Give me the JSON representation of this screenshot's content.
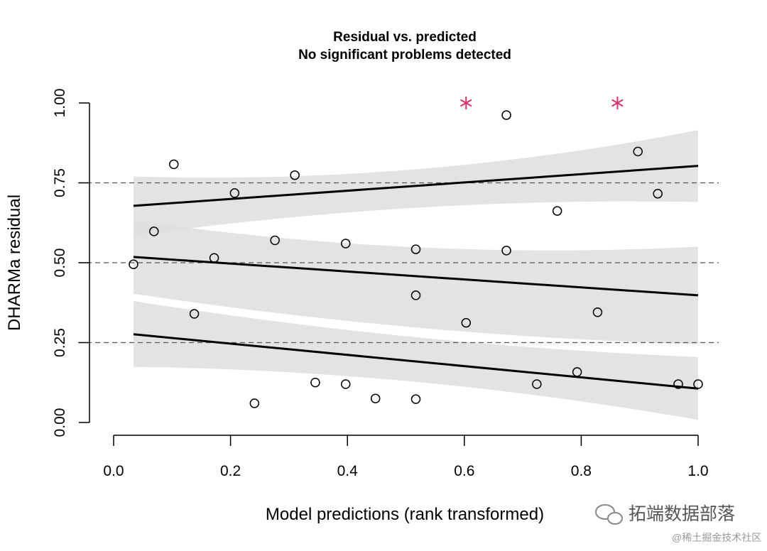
{
  "chart_data": {
    "type": "scatter",
    "title": "Residual vs. predicted",
    "subtitle": "No significant problems detected",
    "xlabel": "Model predictions (rank transformed)",
    "ylabel": "DHARMa residual",
    "xlim": [
      0.0,
      1.0
    ],
    "ylim": [
      0.0,
      1.0
    ],
    "x_ticks": [
      {
        "value": 0.0,
        "label": "0.0"
      },
      {
        "value": 0.2,
        "label": "0.2"
      },
      {
        "value": 0.4,
        "label": "0.4"
      },
      {
        "value": 0.6,
        "label": "0.6"
      },
      {
        "value": 0.8,
        "label": "0.8"
      },
      {
        "value": 1.0,
        "label": "1.0"
      }
    ],
    "y_ticks": [
      {
        "value": 0.0,
        "label": "0.00"
      },
      {
        "value": 0.25,
        "label": "0.25"
      },
      {
        "value": 0.5,
        "label": "0.50"
      },
      {
        "value": 0.75,
        "label": "0.75"
      },
      {
        "value": 1.0,
        "label": "1.00"
      }
    ],
    "reference_lines": [
      0.25,
      0.5,
      0.75
    ],
    "points": [
      {
        "x": 0.034,
        "y": 0.495
      },
      {
        "x": 0.069,
        "y": 0.598
      },
      {
        "x": 0.103,
        "y": 0.808
      },
      {
        "x": 0.138,
        "y": 0.34
      },
      {
        "x": 0.172,
        "y": 0.515
      },
      {
        "x": 0.207,
        "y": 0.718
      },
      {
        "x": 0.241,
        "y": 0.06
      },
      {
        "x": 0.276,
        "y": 0.57
      },
      {
        "x": 0.31,
        "y": 0.774
      },
      {
        "x": 0.345,
        "y": 0.125
      },
      {
        "x": 0.397,
        "y": 0.56
      },
      {
        "x": 0.397,
        "y": 0.12
      },
      {
        "x": 0.448,
        "y": 0.075
      },
      {
        "x": 0.517,
        "y": 0.542
      },
      {
        "x": 0.517,
        "y": 0.398
      },
      {
        "x": 0.517,
        "y": 0.073
      },
      {
        "x": 0.603,
        "y": 0.312
      },
      {
        "x": 0.672,
        "y": 0.962
      },
      {
        "x": 0.672,
        "y": 0.538
      },
      {
        "x": 0.724,
        "y": 0.12
      },
      {
        "x": 0.759,
        "y": 0.662
      },
      {
        "x": 0.793,
        "y": 0.158
      },
      {
        "x": 0.828,
        "y": 0.345
      },
      {
        "x": 0.897,
        "y": 0.848
      },
      {
        "x": 0.931,
        "y": 0.716
      },
      {
        "x": 0.966,
        "y": 0.12
      },
      {
        "x": 1.0,
        "y": 0.12
      }
    ],
    "outliers": [
      {
        "x": 0.603,
        "y": 1.0
      },
      {
        "x": 0.862,
        "y": 1.0
      }
    ],
    "quantile_fits": [
      {
        "quantile": 0.25,
        "start": [
          0.034,
          0.276
        ],
        "end": [
          1.0,
          0.106
        ],
        "band_upper": [
          [
            0.034,
            0.38
          ],
          [
            0.5,
            0.27
          ],
          [
            1.0,
            0.205
          ]
        ],
        "band_lower": [
          [
            0.034,
            0.174
          ],
          [
            0.5,
            0.13
          ],
          [
            1.0,
            0.008
          ]
        ]
      },
      {
        "quantile": 0.5,
        "start": [
          0.034,
          0.518
        ],
        "end": [
          1.0,
          0.398
        ],
        "band_upper": [
          [
            0.034,
            0.632
          ],
          [
            0.5,
            0.55
          ],
          [
            1.0,
            0.55
          ]
        ],
        "band_lower": [
          [
            0.034,
            0.403
          ],
          [
            0.5,
            0.3
          ],
          [
            1.0,
            0.245
          ]
        ]
      },
      {
        "quantile": 0.75,
        "start": [
          0.034,
          0.678
        ],
        "end": [
          1.0,
          0.803
        ],
        "band_upper": [
          [
            0.034,
            0.77
          ],
          [
            0.3,
            0.77
          ],
          [
            1.0,
            0.915
          ]
        ],
        "band_lower": [
          [
            0.034,
            0.585
          ],
          [
            0.5,
            0.67
          ],
          [
            1.0,
            0.69
          ]
        ]
      }
    ],
    "colors": {
      "band": "#dedede",
      "fit_line": "#000000",
      "point_stroke": "#000000",
      "outlier": "#d6336c",
      "reference_line": "#555555"
    }
  },
  "watermark": {
    "main": "拓端数据部落",
    "sub": "@稀土掘金技术社区"
  }
}
